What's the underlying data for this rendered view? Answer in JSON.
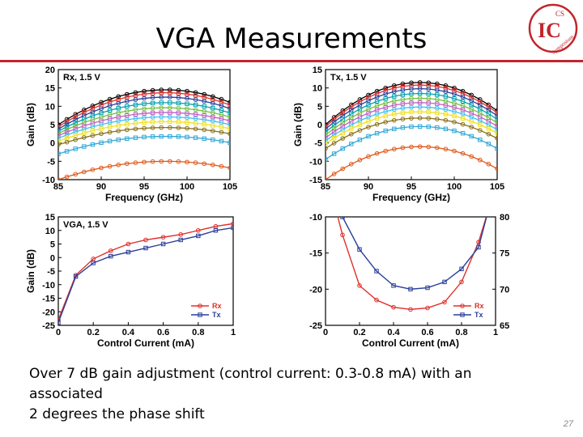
{
  "slide": {
    "title": "VGA Measurements",
    "caption_line1": "Over 7 dB gain adjustment (control current: 0.3-0.8 mA) with an associated",
    "caption_line2": "2 degrees the phase shift",
    "page_number": "27",
    "logo_text_top": "CS",
    "logo_text_mid": "IC",
    "logo_text_arc": "Symposium"
  },
  "colors": {
    "accent_rule": "#c0262c",
    "logo": "#c0262c",
    "rx": "#e0302a",
    "tx": "#2a3f9a"
  },
  "chart_data": [
    {
      "id": "rx",
      "type": "line",
      "title": "Rx, 1.5 V",
      "xlabel": "Frequency (GHz)",
      "ylabel": "Gain (dB)",
      "xlim": [
        85,
        105
      ],
      "ylim": [
        -10,
        20
      ],
      "xticks": [
        85,
        90,
        95,
        100,
        105
      ],
      "yticks": [
        -10,
        -5,
        0,
        5,
        10,
        15,
        20
      ],
      "x": [
        85,
        86,
        87,
        88,
        89,
        90,
        91,
        92,
        93,
        94,
        95,
        96,
        97,
        98,
        99,
        100,
        101,
        102,
        103,
        104,
        105
      ],
      "peak_x": 97.5,
      "series": [
        {
          "peak": 14.5,
          "edge": 5.0,
          "color": "#000000"
        },
        {
          "peak": 13.7,
          "edge": 4.4,
          "color": "#e0302a"
        },
        {
          "peak": 12.5,
          "edge": 3.8,
          "color": "#2a3f9a"
        },
        {
          "peak": 11.0,
          "edge": 3.2,
          "color": "#00a0b0"
        },
        {
          "peak": 9.6,
          "edge": 2.6,
          "color": "#6fc040"
        },
        {
          "peak": 8.3,
          "edge": 2.0,
          "color": "#c060c0"
        },
        {
          "peak": 7.1,
          "edge": 1.3,
          "color": "#40c0f0"
        },
        {
          "peak": 5.8,
          "edge": 0.5,
          "color": "#f0e020"
        },
        {
          "peak": 4.2,
          "edge": -0.5,
          "color": "#8a7018"
        },
        {
          "peak": 1.8,
          "edge": -3.0,
          "color": "#30a8d8"
        },
        {
          "peak": -5.0,
          "edge": -10.0,
          "color": "#e05818"
        }
      ]
    },
    {
      "id": "tx",
      "type": "line",
      "title": "Tx, 1.5 V",
      "xlabel": "Frequency (GHz)",
      "ylabel": "Gain (dB)",
      "xlim": [
        85,
        105
      ],
      "ylim": [
        -15,
        15
      ],
      "xticks": [
        85,
        90,
        95,
        100,
        105
      ],
      "yticks": [
        -15,
        -10,
        -5,
        0,
        5,
        10,
        15
      ],
      "x": [
        85,
        86,
        87,
        88,
        89,
        90,
        91,
        92,
        93,
        94,
        95,
        96,
        97,
        98,
        99,
        100,
        101,
        102,
        103,
        104,
        105
      ],
      "peak_x": 96,
      "series": [
        {
          "peak": 11.5,
          "edge": 0.0,
          "color": "#000000"
        },
        {
          "peak": 10.8,
          "edge": -0.5,
          "color": "#e0302a"
        },
        {
          "peak": 9.8,
          "edge": -1.2,
          "color": "#2a3f9a"
        },
        {
          "peak": 8.5,
          "edge": -2.0,
          "color": "#00a0b0"
        },
        {
          "peak": 7.2,
          "edge": -2.8,
          "color": "#6fc040"
        },
        {
          "peak": 6.0,
          "edge": -3.6,
          "color": "#c060c0"
        },
        {
          "peak": 4.8,
          "edge": -4.4,
          "color": "#40c0f0"
        },
        {
          "peak": 3.5,
          "edge": -5.2,
          "color": "#f0e020"
        },
        {
          "peak": 1.8,
          "edge": -6.5,
          "color": "#8a7018"
        },
        {
          "peak": -0.5,
          "edge": -9.5,
          "color": "#30a8d8"
        },
        {
          "peak": -6.0,
          "edge": -15.0,
          "color": "#e05818"
        }
      ]
    },
    {
      "id": "vga",
      "type": "line",
      "title": "VGA, 1.5 V",
      "xlabel": "Control Current (mA)",
      "ylabel": "Gain (dB)",
      "xlim": [
        0,
        1
      ],
      "ylim": [
        -25,
        15
      ],
      "xticks": [
        0,
        0.2,
        0.4,
        0.6,
        0.8,
        1
      ],
      "yticks": [
        -25,
        -20,
        -15,
        -10,
        -5,
        0,
        5,
        10,
        15
      ],
      "legend": "bottom-right",
      "series": [
        {
          "name": "Rx",
          "x": [
            0,
            0.1,
            0.2,
            0.3,
            0.4,
            0.5,
            0.6,
            0.7,
            0.8,
            0.9,
            1.0
          ],
          "values": [
            -23,
            -6.5,
            -0.5,
            2.5,
            5,
            6.5,
            7.5,
            8.5,
            10,
            11.5,
            12.5
          ],
          "color": "#e0302a"
        },
        {
          "name": "Tx",
          "x": [
            0,
            0.1,
            0.2,
            0.3,
            0.4,
            0.5,
            0.6,
            0.7,
            0.8,
            0.9,
            1.0
          ],
          "values": [
            -24,
            -7,
            -2,
            0.5,
            2,
            3.5,
            5,
            6.5,
            8,
            10,
            11
          ],
          "color": "#2a3f9a"
        }
      ]
    },
    {
      "id": "phase",
      "type": "line",
      "title": "",
      "xlabel": "Control Current (mA)",
      "xlim": [
        0,
        1
      ],
      "ylim": [
        -25,
        -10
      ],
      "y2lim": [
        65,
        80
      ],
      "xticks": [
        0,
        0.2,
        0.4,
        0.6,
        0.8,
        1
      ],
      "yticks": [
        -25,
        -20,
        -15,
        -10
      ],
      "y2ticks": [
        65,
        70,
        75,
        80
      ],
      "legend": "bottom-right",
      "series": [
        {
          "name": "Rx",
          "axis": "left",
          "x": [
            0.1,
            0.2,
            0.3,
            0.4,
            0.5,
            0.6,
            0.7,
            0.8,
            0.9
          ],
          "values": [
            -12.5,
            -19.5,
            -21.5,
            -22.5,
            -22.8,
            -22.6,
            -21.8,
            -19.0,
            -13.5
          ],
          "color": "#e0302a"
        },
        {
          "name": "Tx",
          "axis": "right",
          "x": [
            0.1,
            0.2,
            0.3,
            0.4,
            0.5,
            0.6,
            0.7,
            0.8,
            0.9
          ],
          "values": [
            80,
            75.5,
            72.5,
            70.5,
            70.0,
            70.2,
            71.0,
            72.8,
            75.8
          ],
          "color": "#2a3f9a"
        }
      ]
    }
  ]
}
